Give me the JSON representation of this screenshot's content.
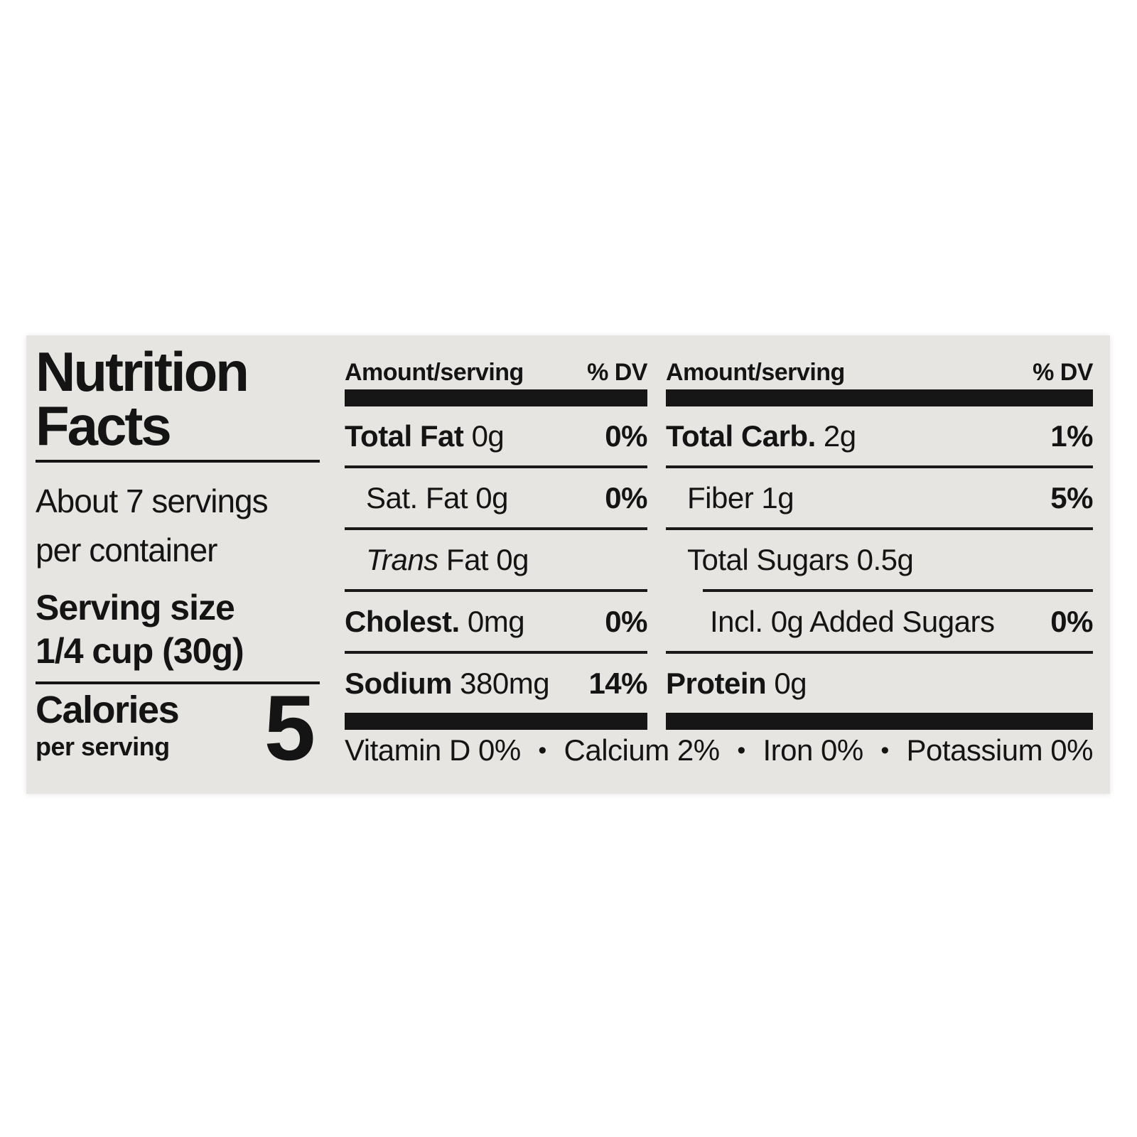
{
  "label": {
    "background_color": "#e6e5e2",
    "text_color": "#141414",
    "title_line1": "Nutrition",
    "title_line2": "Facts",
    "servings_line1": "About 7 servings",
    "servings_line2": "per container",
    "serving_size_label": "Serving size",
    "serving_size_value": "1/4 cup (30g)",
    "calories_label": "Calories",
    "calories_sub": "per serving",
    "calories_value": "5",
    "columns": [
      {
        "header": "Amount/serving",
        "dv_header": "% DV",
        "rows": [
          {
            "bold": "Total Fat",
            "text": "0g",
            "dv": "0%"
          },
          {
            "text": "Sat. Fat 0g",
            "dv": "0%"
          },
          {
            "italic": "Trans",
            "text": "Fat 0g",
            "dv": ""
          },
          {
            "bold": "Cholest.",
            "text": "0mg",
            "dv": "0%"
          },
          {
            "bold": "Sodium",
            "text": "380mg",
            "dv": "14%"
          }
        ]
      },
      {
        "header": "Amount/serving",
        "dv_header": "% DV",
        "rows": [
          {
            "bold": "Total Carb.",
            "text": "2g",
            "dv": "1%"
          },
          {
            "text": "Fiber 1g",
            "dv": "5%"
          },
          {
            "text": "Total Sugars 0.5g",
            "dv": ""
          },
          {
            "text": "Incl. 0g Added Sugars",
            "dv": "0%"
          },
          {
            "bold": "Protein",
            "text": "0g",
            "dv": ""
          }
        ]
      }
    ],
    "footer": {
      "bullet": "•",
      "items": [
        "Vitamin D 0%",
        "Calcium 2%",
        "Iron 0%",
        "Potassium 0%"
      ]
    }
  }
}
